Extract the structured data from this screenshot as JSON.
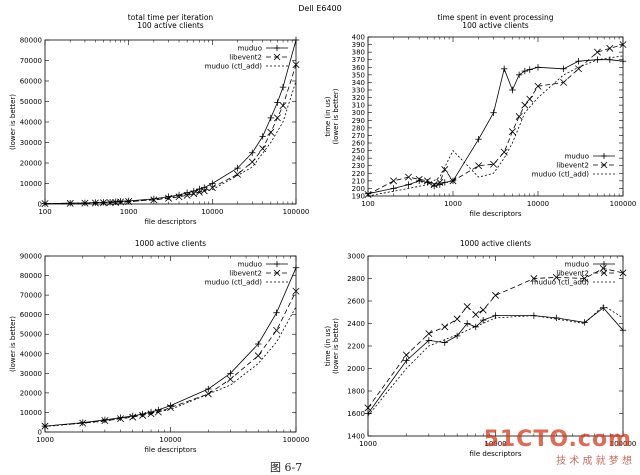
{
  "figure_title": "Dell E6400",
  "caption": "图 6-7",
  "watermark": {
    "main": "51CTO.com",
    "sub": "技 术 成 就 梦 想"
  },
  "chart_data": [
    {
      "type": "line",
      "title": "total time per iteration",
      "subtitle": "100 active clients",
      "xlabel": "file descriptors",
      "ylabel": "(lower is better)",
      "xscale": "log",
      "xlim": [
        100,
        100000
      ],
      "ylim": [
        0,
        80000
      ],
      "x_ticks": [
        100,
        1000,
        10000,
        100000
      ],
      "x_tick_labels": [
        "100",
        "1000",
        "10000",
        "100000"
      ],
      "y_ticks": [
        0,
        10000,
        20000,
        30000,
        40000,
        50000,
        60000,
        70000,
        80000
      ],
      "y_tick_labels": [
        "0",
        "10000",
        "20000",
        "30000",
        "40000",
        "50000",
        "60000",
        "70000",
        "80000"
      ],
      "legend_position": "top-right",
      "series": [
        {
          "name": "muduo",
          "style": "solid",
          "marker": "plus",
          "x": [
            100,
            200,
            300,
            400,
            500,
            600,
            700,
            800,
            1000,
            2000,
            3000,
            4000,
            5000,
            6000,
            7000,
            8000,
            10000,
            20000,
            30000,
            40000,
            50000,
            60000,
            70000,
            100000
          ],
          "y": [
            200,
            400,
            500,
            700,
            800,
            900,
            1100,
            1300,
            1500,
            2500,
            3600,
            4400,
            5500,
            6300,
            7300,
            8000,
            10000,
            17500,
            25000,
            33000,
            42000,
            49500,
            57000,
            80000
          ]
        },
        {
          "name": "libevent2",
          "style": "dashed",
          "marker": "cross",
          "x": [
            100,
            200,
            300,
            400,
            500,
            600,
            700,
            800,
            1000,
            2000,
            3000,
            4000,
            5000,
            6000,
            7000,
            8000,
            10000,
            20000,
            30000,
            40000,
            50000,
            60000,
            70000,
            100000
          ],
          "y": [
            200,
            300,
            400,
            500,
            600,
            700,
            800,
            1000,
            1200,
            2000,
            2800,
            3500,
            4200,
            5000,
            5700,
            6400,
            8000,
            14500,
            20500,
            27000,
            35000,
            42000,
            48000,
            68000
          ]
        },
        {
          "name": "muduo (ctl_add)",
          "style": "dotted",
          "marker": "none",
          "x": [
            100,
            1000,
            3000,
            10000,
            30000,
            50000,
            70000,
            100000
          ],
          "y": [
            150,
            1000,
            3000,
            7000,
            18000,
            30000,
            40000,
            60000
          ]
        }
      ]
    },
    {
      "type": "line",
      "title": "time spent in event processing",
      "subtitle": "100 active clients",
      "xlabel": "file descriptors",
      "ylabel": "time (in us)\n(lower is better)",
      "xscale": "log",
      "xlim": [
        100,
        100000
      ],
      "ylim": [
        190,
        400
      ],
      "x_ticks": [
        100,
        1000,
        10000,
        100000
      ],
      "x_tick_labels": [
        "100",
        "1000",
        "10000",
        "100000"
      ],
      "y_ticks": [
        190,
        200,
        210,
        220,
        230,
        240,
        250,
        260,
        270,
        280,
        290,
        300,
        310,
        320,
        330,
        340,
        350,
        360,
        370,
        380,
        390,
        400
      ],
      "y_tick_labels": [
        "190",
        "200",
        "210",
        "220",
        "230",
        "240",
        "250",
        "260",
        "270",
        "280",
        "290",
        "300",
        "310",
        "320",
        "330",
        "340",
        "350",
        "360",
        "370",
        "380",
        "390",
        "400"
      ],
      "legend_position": "bottom-right",
      "series": [
        {
          "name": "muduo",
          "style": "solid",
          "marker": "plus",
          "x": [
            100,
            200,
            300,
            400,
            500,
            600,
            700,
            800,
            1000,
            2000,
            3000,
            4000,
            5000,
            6000,
            7000,
            8000,
            10000,
            20000,
            30000,
            50000,
            70000,
            100000
          ],
          "y": [
            193,
            200,
            205,
            210,
            208,
            203,
            205,
            208,
            210,
            265,
            300,
            358,
            330,
            350,
            355,
            357,
            360,
            358,
            368,
            370,
            370,
            368
          ]
        },
        {
          "name": "libevent2",
          "style": "dashed",
          "marker": "cross",
          "x": [
            100,
            200,
            300,
            400,
            500,
            600,
            700,
            800,
            1000,
            2000,
            3000,
            4000,
            5000,
            6000,
            7000,
            8000,
            10000,
            20000,
            30000,
            50000,
            70000,
            100000
          ],
          "y": [
            192,
            210,
            215,
            212,
            210,
            205,
            208,
            225,
            210,
            230,
            232,
            248,
            275,
            295,
            310,
            318,
            335,
            340,
            358,
            380,
            385,
            390
          ]
        },
        {
          "name": "muduo (ctl_add)",
          "style": "dotted",
          "marker": "none",
          "x": [
            100,
            300,
            500,
            700,
            1000,
            2000,
            3000,
            4000,
            5000,
            7000,
            10000,
            20000,
            30000,
            50000,
            100000
          ],
          "y": [
            190,
            200,
            205,
            215,
            250,
            215,
            220,
            240,
            260,
            300,
            320,
            350,
            360,
            370,
            375
          ]
        }
      ]
    },
    {
      "type": "line",
      "title": "1000 active clients",
      "subtitle": "",
      "xlabel": "file descriptors",
      "ylabel": "(lower is better)",
      "xscale": "log",
      "xlim": [
        1000,
        100000
      ],
      "ylim": [
        0,
        90000
      ],
      "x_ticks": [
        1000,
        10000,
        100000
      ],
      "x_tick_labels": [
        "1000",
        "10000",
        "100000"
      ],
      "y_ticks": [
        0,
        10000,
        20000,
        30000,
        40000,
        50000,
        60000,
        70000,
        80000,
        90000
      ],
      "y_tick_labels": [
        "0",
        "10000",
        "20000",
        "30000",
        "40000",
        "50000",
        "60000",
        "70000",
        "80000",
        "90000"
      ],
      "legend_position": "top-right",
      "series": [
        {
          "name": "muduo",
          "style": "solid",
          "marker": "plus",
          "x": [
            1000,
            2000,
            3000,
            4000,
            5000,
            6000,
            7000,
            8000,
            10000,
            20000,
            30000,
            50000,
            70000,
            100000
          ],
          "y": [
            3000,
            4800,
            6200,
            7300,
            8200,
            9200,
            10200,
            11300,
            13500,
            22000,
            30000,
            45000,
            61000,
            84000
          ]
        },
        {
          "name": "libevent2",
          "style": "dashed",
          "marker": "cross",
          "x": [
            1000,
            2000,
            3000,
            4000,
            5000,
            6000,
            7000,
            8000,
            10000,
            20000,
            30000,
            50000,
            70000,
            100000
          ],
          "y": [
            3000,
            4500,
            5800,
            6800,
            7600,
            8500,
            9300,
            10200,
            12500,
            19500,
            27000,
            39000,
            52000,
            72000
          ]
        },
        {
          "name": "muduo (ctl_add)",
          "style": "dotted",
          "marker": "none",
          "x": [
            1000,
            3000,
            10000,
            30000,
            50000,
            70000,
            100000
          ],
          "y": [
            2800,
            5500,
            11500,
            24000,
            35000,
            46000,
            64000
          ]
        }
      ]
    },
    {
      "type": "line",
      "title": "1000 active clients",
      "subtitle": "",
      "xlabel": "file descriptors",
      "ylabel": "time (in us)\n(lower is better)",
      "xscale": "log",
      "xlim": [
        1000,
        100000
      ],
      "ylim": [
        1400,
        3000
      ],
      "x_ticks": [
        1000,
        10000,
        100000
      ],
      "x_tick_labels": [
        "1000",
        "10000",
        "100000"
      ],
      "y_ticks": [
        1400,
        1600,
        1800,
        2000,
        2200,
        2400,
        2600,
        2800,
        3000
      ],
      "y_tick_labels": [
        "1400",
        "1600",
        "1800",
        "2000",
        "2200",
        "2400",
        "2600",
        "2800",
        "3000"
      ],
      "legend_position": "top-right",
      "series": [
        {
          "name": "muduo",
          "style": "solid",
          "marker": "plus",
          "x": [
            1000,
            2000,
            3000,
            4000,
            5000,
            6000,
            7000,
            8000,
            10000,
            20000,
            30000,
            50000,
            70000,
            100000
          ],
          "y": [
            1600,
            2070,
            2250,
            2230,
            2290,
            2400,
            2370,
            2430,
            2470,
            2470,
            2450,
            2410,
            2540,
            2340
          ]
        },
        {
          "name": "libevent2",
          "style": "dashed",
          "marker": "cross",
          "x": [
            1000,
            2000,
            3000,
            4000,
            5000,
            6000,
            7000,
            8000,
            10000,
            20000,
            30000,
            50000,
            70000,
            100000
          ],
          "y": [
            1650,
            2120,
            2310,
            2370,
            2440,
            2550,
            2480,
            2520,
            2650,
            2800,
            2810,
            2800,
            2890,
            2850
          ]
        },
        {
          "name": "muduo (ctl_add)",
          "style": "dotted",
          "marker": "none",
          "x": [
            1000,
            2000,
            3000,
            5000,
            10000,
            20000,
            50000,
            70000,
            100000
          ],
          "y": [
            1580,
            2000,
            2200,
            2300,
            2450,
            2470,
            2400,
            2560,
            2450
          ]
        }
      ]
    }
  ]
}
